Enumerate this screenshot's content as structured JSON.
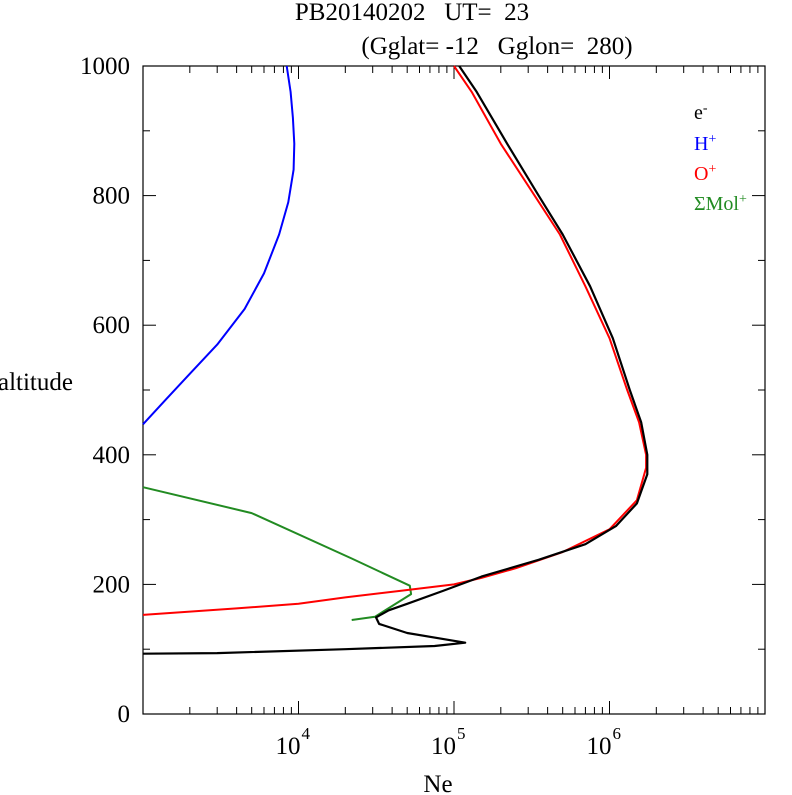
{
  "chart_data": {
    "type": "line",
    "title_line1": "PB20140202   UT=  23",
    "title_line2": "(Gglat= -12   Gglon=  280)",
    "xlabel": "Ne",
    "ylabel": "altitude",
    "x_scale": "log",
    "xlim": [
      1000,
      10000000
    ],
    "ylim": [
      0,
      1000
    ],
    "x_ticks": [
      {
        "base": "10",
        "exp": "4",
        "value": 10000
      },
      {
        "base": "10",
        "exp": "5",
        "value": 100000
      },
      {
        "base": "10",
        "exp": "6",
        "value": 1000000
      }
    ],
    "y_ticks": [
      {
        "label": "0",
        "value": 0
      },
      {
        "label": "200",
        "value": 200
      },
      {
        "label": "400",
        "value": 400
      },
      {
        "label": "600",
        "value": 600
      },
      {
        "label": "800",
        "value": 800
      },
      {
        "label": "1000",
        "value": 1000
      }
    ],
    "legend_position": "top-right",
    "series": [
      {
        "name": "e-",
        "label_base": "e",
        "label_sup": "-",
        "color": "#000000",
        "points": [
          [
            1000,
            93
          ],
          [
            3000,
            94
          ],
          [
            20000,
            100
          ],
          [
            75000,
            105
          ],
          [
            118000,
            110
          ],
          [
            50000,
            125
          ],
          [
            33000,
            139
          ],
          [
            31500,
            149
          ],
          [
            38000,
            160
          ],
          [
            50000,
            170
          ],
          [
            85000,
            190
          ],
          [
            150000,
            212
          ],
          [
            350000,
            238
          ],
          [
            700000,
            262
          ],
          [
            1100000,
            290
          ],
          [
            1500000,
            325
          ],
          [
            1750000,
            370
          ],
          [
            1750000,
            400
          ],
          [
            1600000,
            450
          ],
          [
            1350000,
            500
          ],
          [
            1050000,
            580
          ],
          [
            750000,
            660
          ],
          [
            500000,
            740
          ],
          [
            350000,
            800
          ],
          [
            220000,
            880
          ],
          [
            140000,
            960
          ],
          [
            108000,
            1000
          ]
        ]
      },
      {
        "name": "H+",
        "label_base": "H",
        "label_sup": "+",
        "color": "#0000ff",
        "points": [
          [
            1000,
            447
          ],
          [
            1400,
            485
          ],
          [
            2000,
            525
          ],
          [
            3000,
            570
          ],
          [
            4500,
            625
          ],
          [
            6000,
            680
          ],
          [
            7500,
            740
          ],
          [
            8600,
            790
          ],
          [
            9300,
            840
          ],
          [
            9400,
            880
          ],
          [
            9200,
            920
          ],
          [
            8900,
            960
          ],
          [
            8400,
            1000
          ]
        ]
      },
      {
        "name": "O+",
        "label_base": "O",
        "label_sup": "+",
        "color": "#ff0000",
        "points": [
          [
            1000,
            153
          ],
          [
            4000,
            163
          ],
          [
            10000,
            170
          ],
          [
            20000,
            180
          ],
          [
            45000,
            190
          ],
          [
            100000,
            200
          ],
          [
            150000,
            210
          ],
          [
            250000,
            225
          ],
          [
            500000,
            250
          ],
          [
            1000000,
            285
          ],
          [
            1500000,
            330
          ],
          [
            1720000,
            380
          ],
          [
            1720000,
            400
          ],
          [
            1550000,
            450
          ],
          [
            1300000,
            500
          ],
          [
            1000000,
            580
          ],
          [
            700000,
            660
          ],
          [
            480000,
            740
          ],
          [
            330000,
            800
          ],
          [
            200000,
            880
          ],
          [
            130000,
            960
          ],
          [
            100000,
            1000
          ]
        ]
      },
      {
        "name": "ΣMol+",
        "label_base": "ΣMol",
        "label_sup": "+",
        "color": "#228b22",
        "points": [
          [
            1000,
            350
          ],
          [
            5000,
            310
          ],
          [
            22000,
            240
          ],
          [
            52000,
            198
          ],
          [
            53000,
            185
          ],
          [
            31000,
            150
          ],
          [
            22000,
            145
          ]
        ]
      }
    ]
  }
}
